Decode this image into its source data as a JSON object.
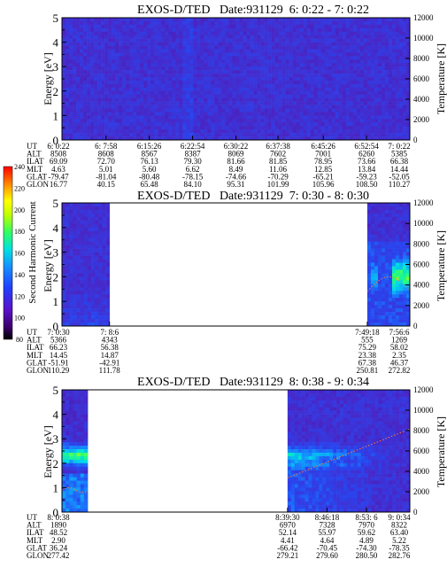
{
  "chart_data": {
    "type": "heatmap",
    "colorbar": {
      "label": "Second Harmonic Current",
      "ticks": [
        "80",
        "100",
        "120",
        "140",
        "160",
        "180",
        "200",
        "220",
        "240"
      ],
      "range": [
        80,
        240
      ]
    },
    "panels": [
      {
        "title": "EXOS-D/TED   Date:931129  6: 0:22 - 7: 0:22",
        "ylabel": "Energy [eV]",
        "y2label": "Temperature [K]",
        "yticks": [
          "0",
          "1",
          "2",
          "3",
          "4",
          "5"
        ],
        "y2ticks": [
          "0",
          "2000",
          "4000",
          "6000",
          "8000",
          "10000",
          "12000"
        ],
        "ylim": [
          0,
          5
        ],
        "y2lim": [
          0,
          12000
        ],
        "data_gaps": [],
        "features": [],
        "rows": [
          "UT",
          "ALT",
          "ILAT",
          "MLT",
          "GLAT",
          "GLON"
        ],
        "columns": [
          {
            "UT": "6: 0:22",
            "ALT": "8508",
            "ILAT": "69.09",
            "MLT": "4.63",
            "GLAT": "-79.47",
            "GLON": "16.77"
          },
          {
            "UT": "6: 7:58",
            "ALT": "8608",
            "ILAT": "72.70",
            "MLT": "5.01",
            "GLAT": "-81.04",
            "GLON": "40.15"
          },
          {
            "UT": "6:15:26",
            "ALT": "8567",
            "ILAT": "76.13",
            "MLT": "5.60",
            "GLAT": "-80.48",
            "GLON": "65.48"
          },
          {
            "UT": "6:22:54",
            "ALT": "8387",
            "ILAT": "79.30",
            "MLT": "6.62",
            "GLAT": "-78.15",
            "GLON": "84.10"
          },
          {
            "UT": "6:30:22",
            "ALT": "8069",
            "ILAT": "81.66",
            "MLT": "8.49",
            "GLAT": "-74.66",
            "GLON": "95.31"
          },
          {
            "UT": "6:37:38",
            "ALT": "7602",
            "ILAT": "81.85",
            "MLT": "11.06",
            "GLAT": "-70.29",
            "GLON": "101.99"
          },
          {
            "UT": "6:45:26",
            "ALT": "7001",
            "ILAT": "78.95",
            "MLT": "12.85",
            "GLAT": "-65.21",
            "GLON": "105.96"
          },
          {
            "UT": "6:52:54",
            "ALT": "6260",
            "ILAT": "73.66",
            "MLT": "13.84",
            "GLAT": "-59.23",
            "GLON": "108.50"
          },
          {
            "UT": "7: 0:22",
            "ALT": "5385",
            "ILAT": "66.38",
            "MLT": "14.44",
            "GLAT": "-52.05",
            "GLON": "110.27"
          }
        ]
      },
      {
        "title": "EXOS-D/TED   Date:931129  7: 0:30 - 8: 0:30",
        "ylabel": "Energy [eV]",
        "y2label": "Temperature [K]",
        "yticks": [
          "0",
          "1",
          "2",
          "3",
          "4",
          "5"
        ],
        "y2ticks": [
          "0",
          "2000",
          "4000",
          "6000",
          "8000",
          "10000",
          "12000"
        ],
        "ylim": [
          0,
          5
        ],
        "y2lim": [
          0,
          12000
        ],
        "data_gaps": [
          [
            "7: 8:6",
            "7:49:18"
          ]
        ],
        "features": [],
        "rows": [
          "UT",
          "ALT",
          "ILAT",
          "MLT",
          "GLAT",
          "GLON"
        ],
        "columns": [
          {
            "UT": "7: 0:30",
            "ALT": "5366",
            "ILAT": "66.23",
            "MLT": "14.45",
            "GLAT": "-51.91",
            "GLON": "110.29"
          },
          {
            "UT": "7: 8:6",
            "ALT": "4343",
            "ILAT": "56.38",
            "MLT": "14.87",
            "GLAT": "-42.91",
            "GLON": "111.78"
          },
          {
            "UT": "7:49:18",
            "ALT": "555",
            "ILAT": "75.29",
            "MLT": "23.38",
            "GLAT": "67.38",
            "GLON": "250.81"
          },
          {
            "UT": "7:56:6",
            "ALT": "1269",
            "ILAT": "58.02",
            "MLT": "2.35",
            "GLAT": "46.37",
            "GLON": "272.82"
          }
        ]
      },
      {
        "title": "EXOS-D/TED   Date:931129  8: 0:38 - 9: 0:34",
        "ylabel": "Energy [eV]",
        "y2label": "Temperature [K]",
        "yticks": [
          "0",
          "1",
          "2",
          "3",
          "4",
          "5"
        ],
        "y2ticks": [
          "0",
          "2000",
          "4000",
          "6000",
          "8000",
          "10000",
          "12000"
        ],
        "ylim": [
          0,
          5
        ],
        "y2lim": [
          0,
          12000
        ],
        "data_gaps": [
          [
            "8: 5:4",
            "8:39:30"
          ]
        ],
        "features": [],
        "rows": [
          "UT",
          "ALT",
          "ILAT",
          "MLT",
          "GLAT",
          "GLON"
        ],
        "columns": [
          {
            "UT": "8: 0:38",
            "ALT": "1890",
            "ILAT": "48.52",
            "MLT": "2.90",
            "GLAT": "36.24",
            "GLON": "277.42"
          },
          {
            "UT": "8:39:30",
            "ALT": "6970",
            "ILAT": "52.14",
            "MLT": "4.41",
            "GLAT": "-66.42",
            "GLON": "279.21"
          },
          {
            "UT": "8:46:18",
            "ALT": "7328",
            "ILAT": "55.97",
            "MLT": "4.64",
            "GLAT": "-70.45",
            "GLON": "279.60"
          },
          {
            "UT": "8:53: 6",
            "ALT": "7970",
            "ILAT": "59.62",
            "MLT": "4.89",
            "GLAT": "-74.30",
            "GLON": "280.50"
          },
          {
            "UT": "9: 0:34",
            "ALT": "8322",
            "ILAT": "63.40",
            "MLT": "5.22",
            "GLAT": "-78.35",
            "GLON": "282.76"
          }
        ]
      }
    ]
  }
}
